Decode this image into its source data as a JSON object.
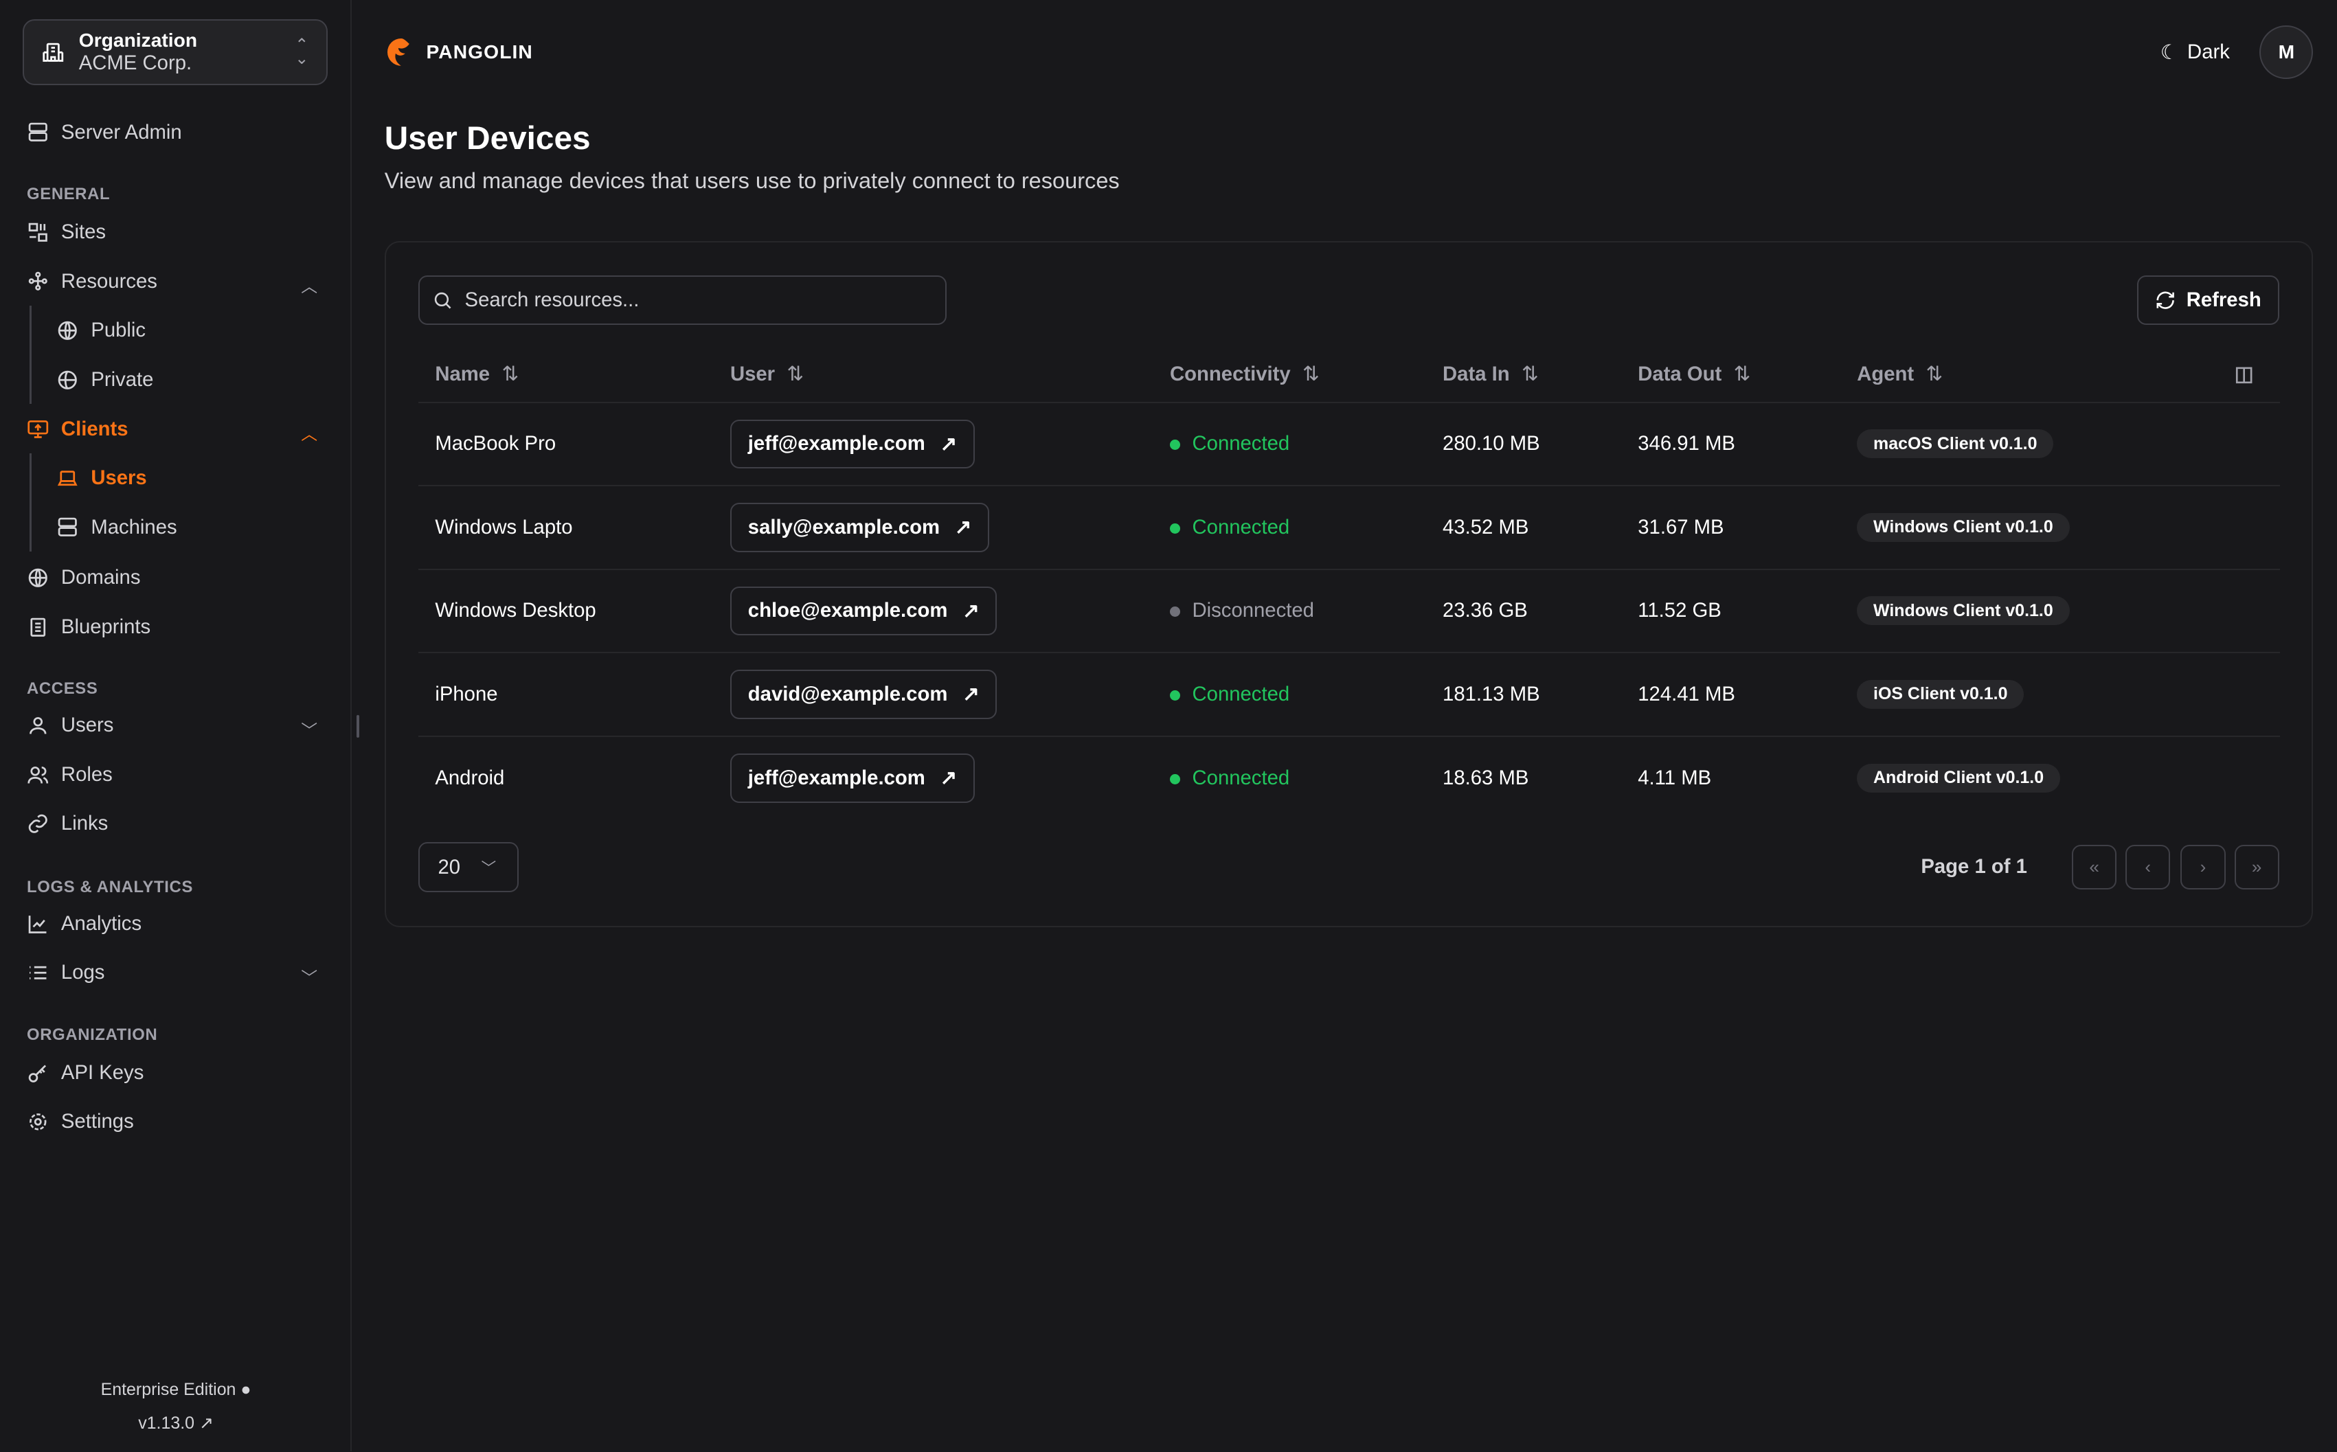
{
  "org": {
    "label": "Organization",
    "name": "ACME Corp."
  },
  "sidebar": {
    "server_admin": "Server Admin",
    "sections": {
      "general": "GENERAL",
      "access": "ACCESS",
      "logs": "LOGS & ANALYTICS",
      "organization": "ORGANIZATION"
    },
    "items": {
      "sites": "Sites",
      "resources": "Resources",
      "public": "Public",
      "private": "Private",
      "clients": "Clients",
      "users": "Users",
      "machines": "Machines",
      "domains": "Domains",
      "blueprints": "Blueprints",
      "access_users": "Users",
      "roles": "Roles",
      "links": "Links",
      "analytics": "Analytics",
      "logs": "Logs",
      "api_keys": "API Keys",
      "settings": "Settings"
    },
    "edition": "Enterprise Edition",
    "version": "v1.13.0"
  },
  "header": {
    "brand": "PANGOLIN",
    "theme": "Dark",
    "avatar": "M"
  },
  "page": {
    "title": "User Devices",
    "subtitle": "View and manage devices that users use to privately connect to resources"
  },
  "toolbar": {
    "search_placeholder": "Search resources...",
    "refresh": "Refresh"
  },
  "table": {
    "columns": [
      "Name",
      "User",
      "Connectivity",
      "Data In",
      "Data Out",
      "Agent"
    ],
    "rows": [
      {
        "name": "MacBook Pro",
        "user": "jeff@example.com",
        "status": "Connected",
        "data_in": "280.10 MB",
        "data_out": "346.91 MB",
        "agent": "macOS Client v0.1.0"
      },
      {
        "name": "Windows Lapto",
        "user": "sally@example.com",
        "status": "Connected",
        "data_in": "43.52 MB",
        "data_out": "31.67 MB",
        "agent": "Windows Client v0.1.0"
      },
      {
        "name": "Windows Desktop",
        "user": "chloe@example.com",
        "status": "Disconnected",
        "data_in": "23.36 GB",
        "data_out": "11.52 GB",
        "agent": "Windows Client v0.1.0"
      },
      {
        "name": "iPhone",
        "user": "david@example.com",
        "status": "Connected",
        "data_in": "181.13 MB",
        "data_out": "124.41 MB",
        "agent": "iOS Client v0.1.0"
      },
      {
        "name": "Android",
        "user": "jeff@example.com",
        "status": "Connected",
        "data_in": "18.63 MB",
        "data_out": "4.11 MB",
        "agent": "Android Client v0.1.0"
      }
    ]
  },
  "pagination": {
    "page_size": "20",
    "info": "Page 1 of 1"
  },
  "colors": {
    "accent": "#f97316",
    "connected": "#22c55e",
    "disconnected": "#71717a",
    "background": "#18181b"
  }
}
